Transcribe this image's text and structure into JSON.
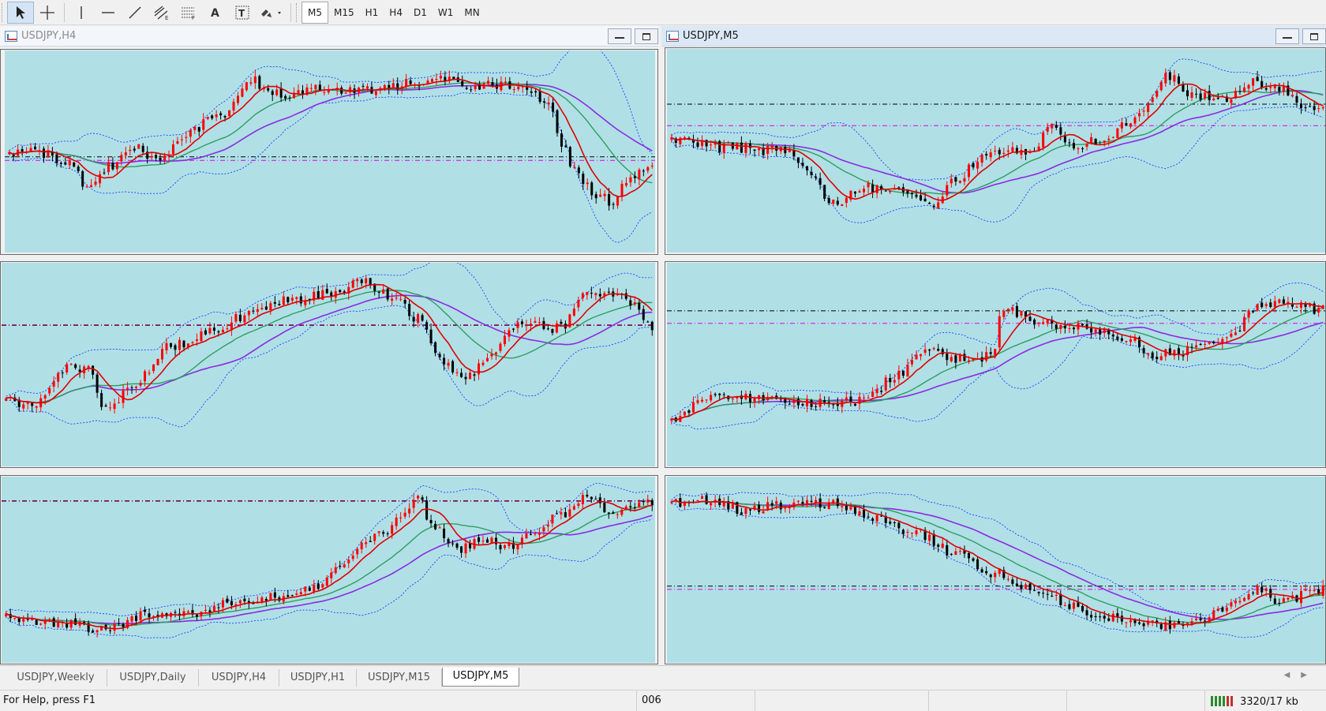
{
  "toolbar": {
    "tools": [
      {
        "name": "cursor-tool-button",
        "icon": "cursor-arrow-icon",
        "active": true
      },
      {
        "name": "crosshair-tool-button",
        "icon": "crosshair-icon"
      },
      {
        "name": "vertical-line-tool-button",
        "icon": "vertical-line-icon"
      },
      {
        "name": "horizontal-line-tool-button",
        "icon": "horizontal-line-icon"
      },
      {
        "name": "trendline-tool-button",
        "icon": "trendline-icon"
      },
      {
        "name": "equidistant-channel-tool-button",
        "icon": "equidistant-channel-icon"
      },
      {
        "name": "fibonacci-tool-button",
        "icon": "fibonacci-retracement-icon"
      },
      {
        "name": "text-tool-button",
        "icon": "text-icon",
        "glyph": "A"
      },
      {
        "name": "text-label-tool-button",
        "icon": "text-label-icon",
        "glyph": "T"
      },
      {
        "name": "arrows-tool-button",
        "icon": "arrows-dropdown-icon"
      }
    ],
    "timeframes": [
      "M5",
      "M15",
      "H1",
      "H4",
      "D1",
      "W1",
      "MN"
    ],
    "active_timeframe": "M5"
  },
  "windows": [
    {
      "title": "USDJPY,H4",
      "active": false
    },
    {
      "title": "USDJPY,M5",
      "active": true
    }
  ],
  "tabs": [
    "USDJPY,Weekly",
    "USDJPY,Daily",
    "USDJPY,H4",
    "USDJPY,H1",
    "USDJPY,M15",
    "USDJPY,M5"
  ],
  "active_tab": "USDJPY,M5",
  "status": {
    "help": "For Help, press F1",
    "profile": "006",
    "traffic": "3320/17 kb"
  },
  "colors": {
    "chart_bg": "#b0e0e6",
    "bull_candle": "#ff0000",
    "bear_candle": "#000000",
    "ma_fast": "#e00000",
    "ma_mid": "#2e9e5e",
    "ma_slow": "#8a2be2",
    "bands": "#1f3fff",
    "level_black": "#000000",
    "level_magenta": "#e000e0",
    "level_purple": "#7a0050"
  },
  "chart_data": [
    {
      "id": "top-left",
      "type": "candlestick",
      "symbol": "USDJPY",
      "timeframe": "H4",
      "anchors": [
        [
          0,
          0.52
        ],
        [
          0.05,
          0.5
        ],
        [
          0.1,
          0.58
        ],
        [
          0.13,
          0.72
        ],
        [
          0.16,
          0.58
        ],
        [
          0.2,
          0.48
        ],
        [
          0.24,
          0.55
        ],
        [
          0.28,
          0.4
        ],
        [
          0.33,
          0.3
        ],
        [
          0.38,
          0.1
        ],
        [
          0.42,
          0.18
        ],
        [
          0.48,
          0.14
        ],
        [
          0.55,
          0.16
        ],
        [
          0.62,
          0.12
        ],
        [
          0.68,
          0.08
        ],
        [
          0.72,
          0.16
        ],
        [
          0.76,
          0.12
        ],
        [
          0.8,
          0.14
        ],
        [
          0.84,
          0.25
        ],
        [
          0.86,
          0.45
        ],
        [
          0.88,
          0.6
        ],
        [
          0.91,
          0.74
        ],
        [
          0.94,
          0.78
        ],
        [
          0.96,
          0.65
        ],
        [
          0.98,
          0.62
        ],
        [
          1,
          0.58
        ]
      ],
      "levels": [
        {
          "y": 0.53,
          "color": "#000000"
        },
        {
          "y": 0.55,
          "color": "#e000e0"
        }
      ],
      "seed": 11
    },
    {
      "id": "top-right",
      "type": "candlestick",
      "symbol": "USDJPY",
      "timeframe": "M5",
      "anchors": [
        [
          0,
          0.44
        ],
        [
          0.08,
          0.48
        ],
        [
          0.18,
          0.5
        ],
        [
          0.22,
          0.62
        ],
        [
          0.25,
          0.8
        ],
        [
          0.3,
          0.7
        ],
        [
          0.36,
          0.74
        ],
        [
          0.4,
          0.8
        ],
        [
          0.44,
          0.66
        ],
        [
          0.48,
          0.55
        ],
        [
          0.52,
          0.5
        ],
        [
          0.56,
          0.52
        ],
        [
          0.58,
          0.36
        ],
        [
          0.62,
          0.48
        ],
        [
          0.66,
          0.44
        ],
        [
          0.7,
          0.36
        ],
        [
          0.74,
          0.22
        ],
        [
          0.76,
          0.08
        ],
        [
          0.8,
          0.18
        ],
        [
          0.85,
          0.22
        ],
        [
          0.9,
          0.12
        ],
        [
          0.94,
          0.16
        ],
        [
          0.97,
          0.26
        ],
        [
          1,
          0.24
        ]
      ],
      "levels": [
        {
          "y": 0.24,
          "color": "#000000"
        },
        {
          "y": 0.36,
          "color": "#e000e0"
        }
      ],
      "seed": 23
    },
    {
      "id": "mid-left",
      "type": "candlestick",
      "symbol": "USDJPY",
      "timeframe": "M5",
      "anchors": [
        [
          0,
          0.7
        ],
        [
          0.05,
          0.74
        ],
        [
          0.1,
          0.52
        ],
        [
          0.13,
          0.52
        ],
        [
          0.16,
          0.76
        ],
        [
          0.2,
          0.62
        ],
        [
          0.26,
          0.4
        ],
        [
          0.32,
          0.32
        ],
        [
          0.38,
          0.22
        ],
        [
          0.44,
          0.14
        ],
        [
          0.5,
          0.1
        ],
        [
          0.56,
          0.04
        ],
        [
          0.6,
          0.12
        ],
        [
          0.64,
          0.24
        ],
        [
          0.68,
          0.5
        ],
        [
          0.72,
          0.56
        ],
        [
          0.75,
          0.44
        ],
        [
          0.8,
          0.28
        ],
        [
          0.86,
          0.3
        ],
        [
          0.9,
          0.1
        ],
        [
          0.96,
          0.14
        ],
        [
          1,
          0.3
        ]
      ],
      "levels": [
        {
          "y": 0.28,
          "color": "#7a0050"
        }
      ],
      "seed": 37
    },
    {
      "id": "mid-right",
      "type": "candlestick",
      "symbol": "USDJPY",
      "timeframe": "M5",
      "anchors": [
        [
          0,
          0.82
        ],
        [
          0.06,
          0.7
        ],
        [
          0.12,
          0.68
        ],
        [
          0.18,
          0.7
        ],
        [
          0.24,
          0.72
        ],
        [
          0.3,
          0.7
        ],
        [
          0.35,
          0.56
        ],
        [
          0.4,
          0.4
        ],
        [
          0.44,
          0.46
        ],
        [
          0.48,
          0.46
        ],
        [
          0.5,
          0.44
        ],
        [
          0.51,
          0.18
        ],
        [
          0.54,
          0.22
        ],
        [
          0.58,
          0.28
        ],
        [
          0.64,
          0.3
        ],
        [
          0.7,
          0.34
        ],
        [
          0.74,
          0.44
        ],
        [
          0.78,
          0.44
        ],
        [
          0.82,
          0.38
        ],
        [
          0.86,
          0.34
        ],
        [
          0.9,
          0.18
        ],
        [
          0.95,
          0.16
        ],
        [
          1,
          0.2
        ]
      ],
      "levels": [
        {
          "y": 0.2,
          "color": "#000000"
        },
        {
          "y": 0.27,
          "color": "#e000e0"
        }
      ],
      "seed": 53
    },
    {
      "id": "bottom-left",
      "type": "candlestick",
      "symbol": "USDJPY",
      "timeframe": "M5",
      "anchors": [
        [
          0,
          0.78
        ],
        [
          0.08,
          0.82
        ],
        [
          0.16,
          0.86
        ],
        [
          0.22,
          0.78
        ],
        [
          0.3,
          0.76
        ],
        [
          0.36,
          0.7
        ],
        [
          0.44,
          0.66
        ],
        [
          0.48,
          0.62
        ],
        [
          0.52,
          0.46
        ],
        [
          0.58,
          0.28
        ],
        [
          0.62,
          0.18
        ],
        [
          0.64,
          0.04
        ],
        [
          0.66,
          0.22
        ],
        [
          0.7,
          0.38
        ],
        [
          0.74,
          0.32
        ],
        [
          0.78,
          0.36
        ],
        [
          0.82,
          0.26
        ],
        [
          0.86,
          0.16
        ],
        [
          0.9,
          0.04
        ],
        [
          0.94,
          0.16
        ],
        [
          0.97,
          0.1
        ],
        [
          1,
          0.08
        ]
      ],
      "levels": [
        {
          "y": 0.08,
          "color": "#7a0050"
        }
      ],
      "seed": 71
    },
    {
      "id": "bottom-right",
      "type": "candlestick",
      "symbol": "USDJPY",
      "timeframe": "M5",
      "anchors": [
        [
          0,
          0.1
        ],
        [
          0.06,
          0.08
        ],
        [
          0.12,
          0.14
        ],
        [
          0.18,
          0.1
        ],
        [
          0.26,
          0.1
        ],
        [
          0.32,
          0.18
        ],
        [
          0.38,
          0.28
        ],
        [
          0.44,
          0.4
        ],
        [
          0.5,
          0.52
        ],
        [
          0.56,
          0.62
        ],
        [
          0.62,
          0.72
        ],
        [
          0.66,
          0.78
        ],
        [
          0.72,
          0.82
        ],
        [
          0.78,
          0.84
        ],
        [
          0.82,
          0.8
        ],
        [
          0.86,
          0.7
        ],
        [
          0.9,
          0.62
        ],
        [
          0.94,
          0.7
        ],
        [
          0.98,
          0.64
        ],
        [
          1,
          0.62
        ]
      ],
      "levels": [
        {
          "y": 0.6,
          "color": "#000000"
        },
        {
          "y": 0.62,
          "color": "#e000e0"
        }
      ],
      "seed": 97
    }
  ]
}
